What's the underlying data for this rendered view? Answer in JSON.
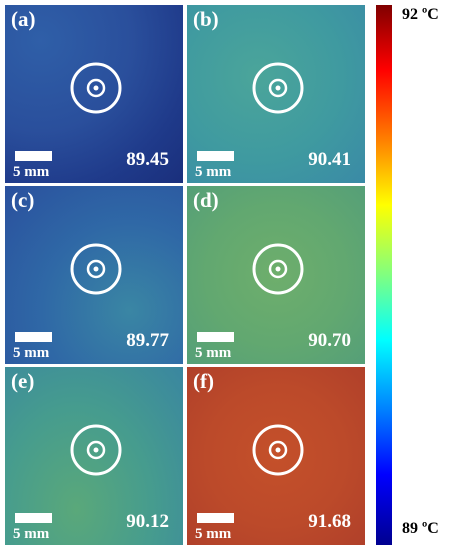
{
  "panels": [
    {
      "label": "(a)",
      "value": "89.45",
      "scale": "5 mm"
    },
    {
      "label": "(b)",
      "value": "90.41",
      "scale": "5 mm"
    },
    {
      "label": "(c)",
      "value": "89.77",
      "scale": "5 mm"
    },
    {
      "label": "(d)",
      "value": "90.70",
      "scale": "5 mm"
    },
    {
      "label": "(e)",
      "value": "90.12",
      "scale": "5 mm"
    },
    {
      "label": "(f)",
      "value": "91.68",
      "scale": "5 mm"
    }
  ],
  "colorbar": {
    "top": "92 ºC",
    "bottom": "89 ºC"
  }
}
